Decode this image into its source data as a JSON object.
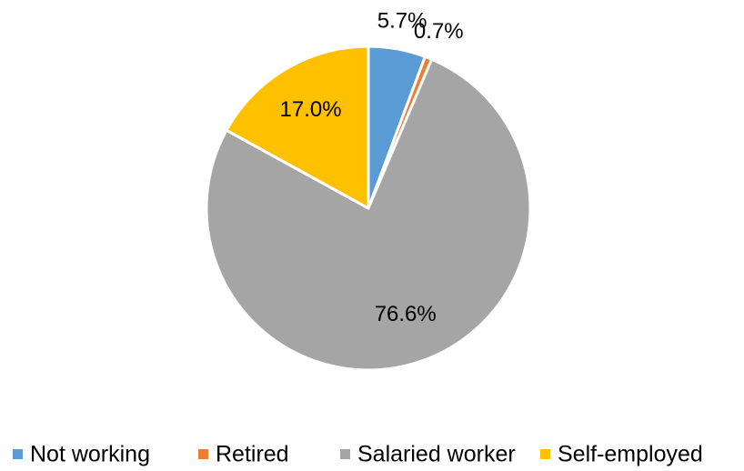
{
  "chart_data": {
    "type": "pie",
    "categories": [
      "Not working",
      "Retired",
      "Salaried worker",
      "Self-employed"
    ],
    "values": [
      5.7,
      0.7,
      76.6,
      17.0
    ],
    "value_labels": [
      "5.7%",
      "0.7%",
      "76.6%",
      "17.0%"
    ],
    "colors": [
      "#5b9bd5",
      "#ed7d31",
      "#a5a5a5",
      "#ffc000"
    ],
    "legend": "bottom"
  }
}
